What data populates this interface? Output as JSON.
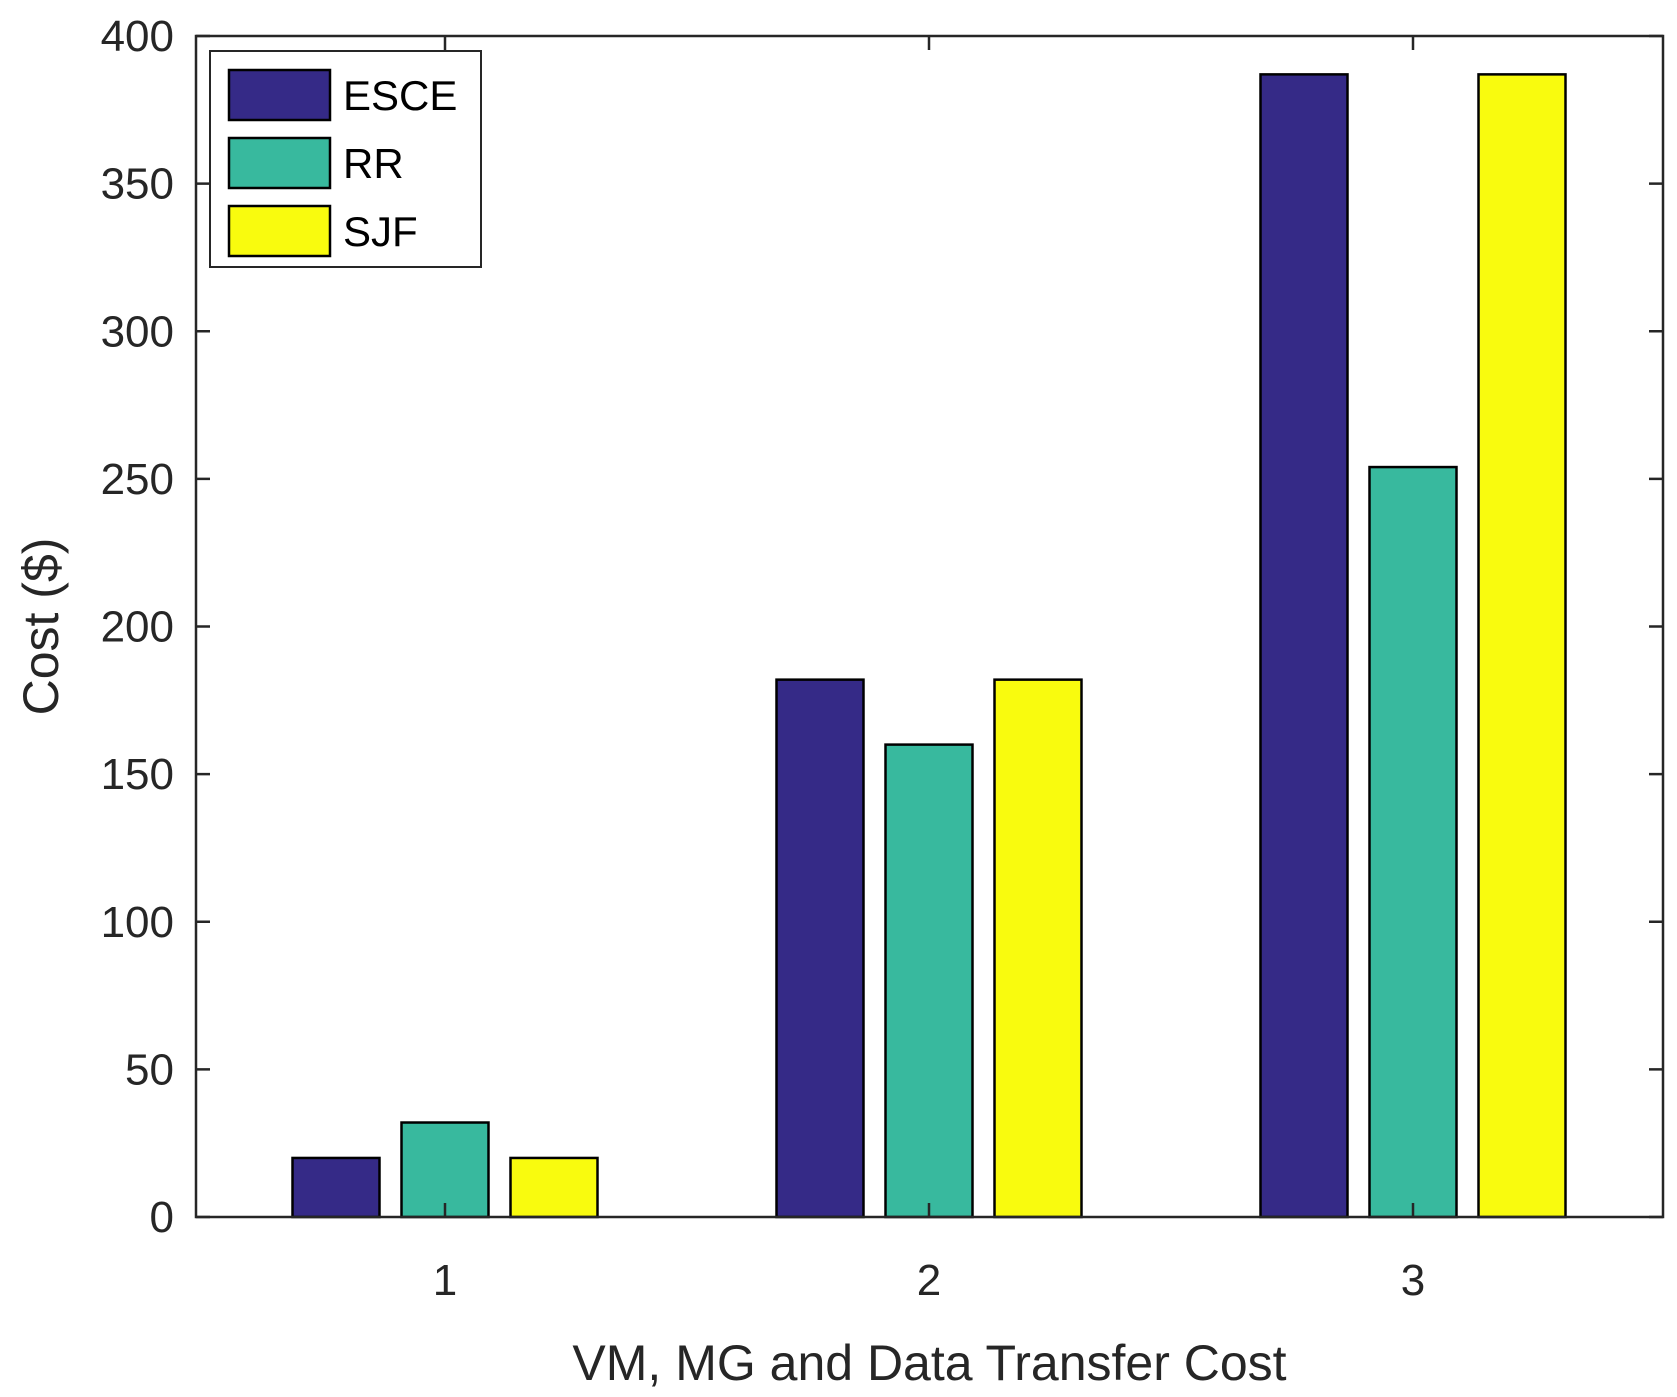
{
  "chart_data": {
    "type": "bar",
    "title": "",
    "xlabel": "VM, MG and Data Transfer Cost",
    "ylabel": "Cost ($)",
    "categories": [
      "1",
      "2",
      "3"
    ],
    "ylim": [
      0,
      400
    ],
    "yticks": [
      0,
      50,
      100,
      150,
      200,
      250,
      300,
      350,
      400
    ],
    "ytick_labels": [
      "0",
      "50",
      "100",
      "150",
      "200",
      "250",
      "300",
      "350",
      "400"
    ],
    "grid": false,
    "legend_position": "top-left",
    "series": [
      {
        "name": "ESCE",
        "color": "#352a87",
        "values": [
          20,
          182,
          387
        ]
      },
      {
        "name": "RR",
        "color": "#38b99e",
        "values": [
          32,
          160,
          254
        ]
      },
      {
        "name": "SJF",
        "color": "#f9fb0e",
        "values": [
          20,
          182,
          387
        ]
      }
    ]
  }
}
